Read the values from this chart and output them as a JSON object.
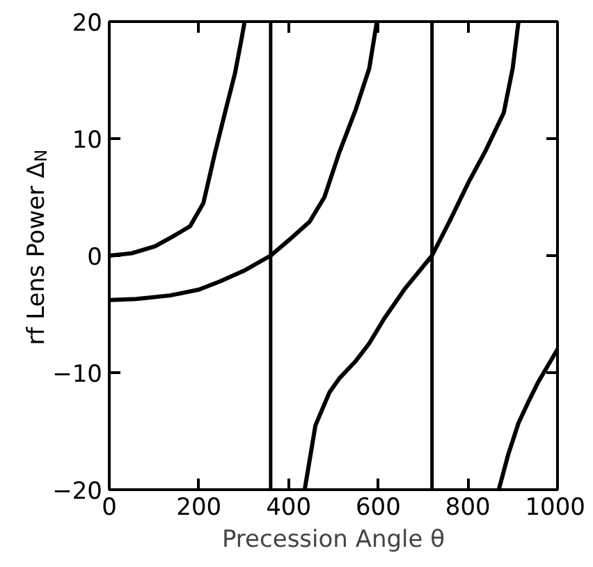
{
  "chart_data": {
    "type": "line",
    "xlabel": "Precession Angle θ",
    "ylabel": "rf Lens Power Δ$_{N}$",
    "xlim": [
      0,
      1000
    ],
    "xticks": [
      0,
      200,
      400,
      600,
      800,
      1000
    ],
    "ylim": [
      -20,
      20
    ],
    "yticks": [
      -20,
      -10,
      0,
      10,
      20
    ],
    "grid": false,
    "marker": "none",
    "line_style": "solid",
    "series": [
      {
        "color": "#000000",
        "x": [
          0,
          50,
          102,
          140,
          180,
          210,
          236,
          260,
          280,
          295,
          302
        ],
        "values": [
          0,
          0.2,
          0.8,
          1.6,
          2.5,
          4.5,
          8.8,
          12.5,
          15.5,
          18.5,
          20
        ]
      },
      {
        "color": "#000000",
        "x": [
          0,
          60,
          136,
          200,
          247,
          300,
          360,
          400,
          447,
          480,
          513,
          550,
          580,
          597
        ],
        "values": [
          -3.8,
          -3.7,
          -3.4,
          -2.9,
          -2.2,
          -1.3,
          0,
          1.3,
          2.9,
          5,
          8.8,
          12.5,
          16,
          20
        ]
      },
      {
        "color": "#000000",
        "x": [
          436,
          460,
          491,
          513,
          550,
          580,
          613,
          660,
          720,
          760,
          802,
          840,
          880,
          900,
          913
        ],
        "values": [
          -20,
          -14.5,
          -11.7,
          -10.5,
          -9,
          -7.5,
          -5.4,
          -2.8,
          0,
          3,
          6.3,
          9,
          12.2,
          16,
          20
        ]
      },
      {
        "color": "#000000",
        "x": [
          869,
          890,
          913,
          935,
          957,
          980,
          1000
        ],
        "values": [
          -20,
          -17,
          -14.3,
          -12.5,
          -10.8,
          -9.3,
          -8
        ]
      }
    ],
    "ref_lines": [
      {
        "axis": "x",
        "value": 360,
        "color": "#000000"
      },
      {
        "axis": "x",
        "value": 720,
        "color": "#000000"
      }
    ]
  }
}
